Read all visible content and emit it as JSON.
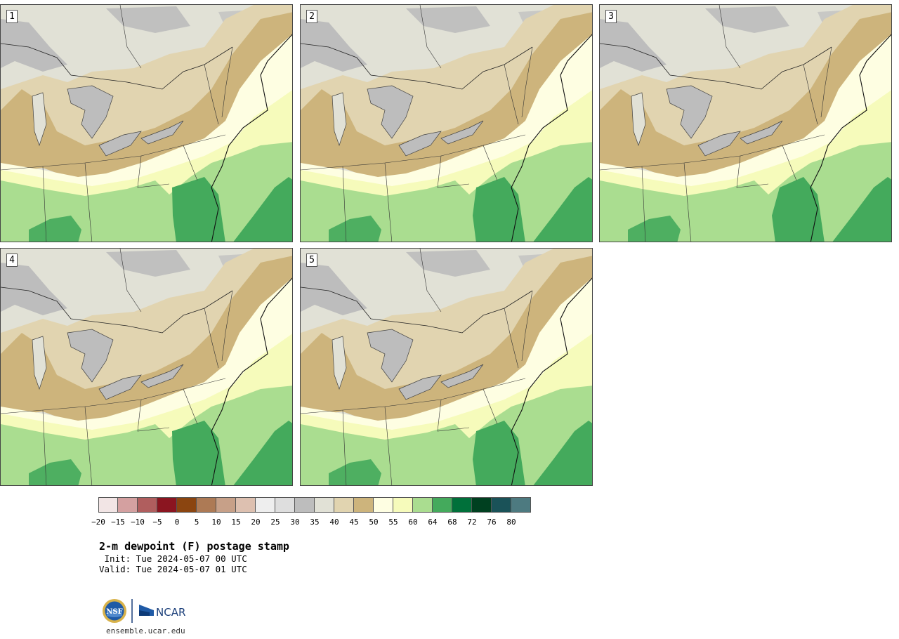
{
  "panels": [
    {
      "label": "1"
    },
    {
      "label": "2"
    },
    {
      "label": "3"
    },
    {
      "label": "4"
    },
    {
      "label": "5"
    }
  ],
  "colorbar": {
    "colors": [
      "#f2e5e5",
      "#d4a0a0",
      "#b05e5e",
      "#8b1520",
      "#8b4510",
      "#ad7a55",
      "#c7a088",
      "#ddc0b0",
      "#eeeeee",
      "#dedede",
      "#bdbdbd",
      "#e1e1d6",
      "#e1d4b0",
      "#cdb47c",
      "#fefee2",
      "#f6fbbb",
      "#aadd90",
      "#44aa5c",
      "#00703a",
      "#004020",
      "#1a5258",
      "#4d7a80"
    ],
    "ticks": [
      "−20",
      "−15",
      "−10",
      "−5",
      "0",
      "5",
      "10",
      "15",
      "20",
      "25",
      "30",
      "35",
      "40",
      "45",
      "50",
      "55",
      "60",
      "64",
      "68",
      "72",
      "76",
      "80"
    ]
  },
  "title": "2-m dewpoint (F) postage stamp",
  "init": " Init: Tue 2024-05-07 00 UTC",
  "valid": "Valid: Tue 2024-05-07 01 UTC",
  "logo": {
    "nsf": "NSF",
    "ncar": "NCAR"
  },
  "url": "ensemble.ucar.edu"
}
